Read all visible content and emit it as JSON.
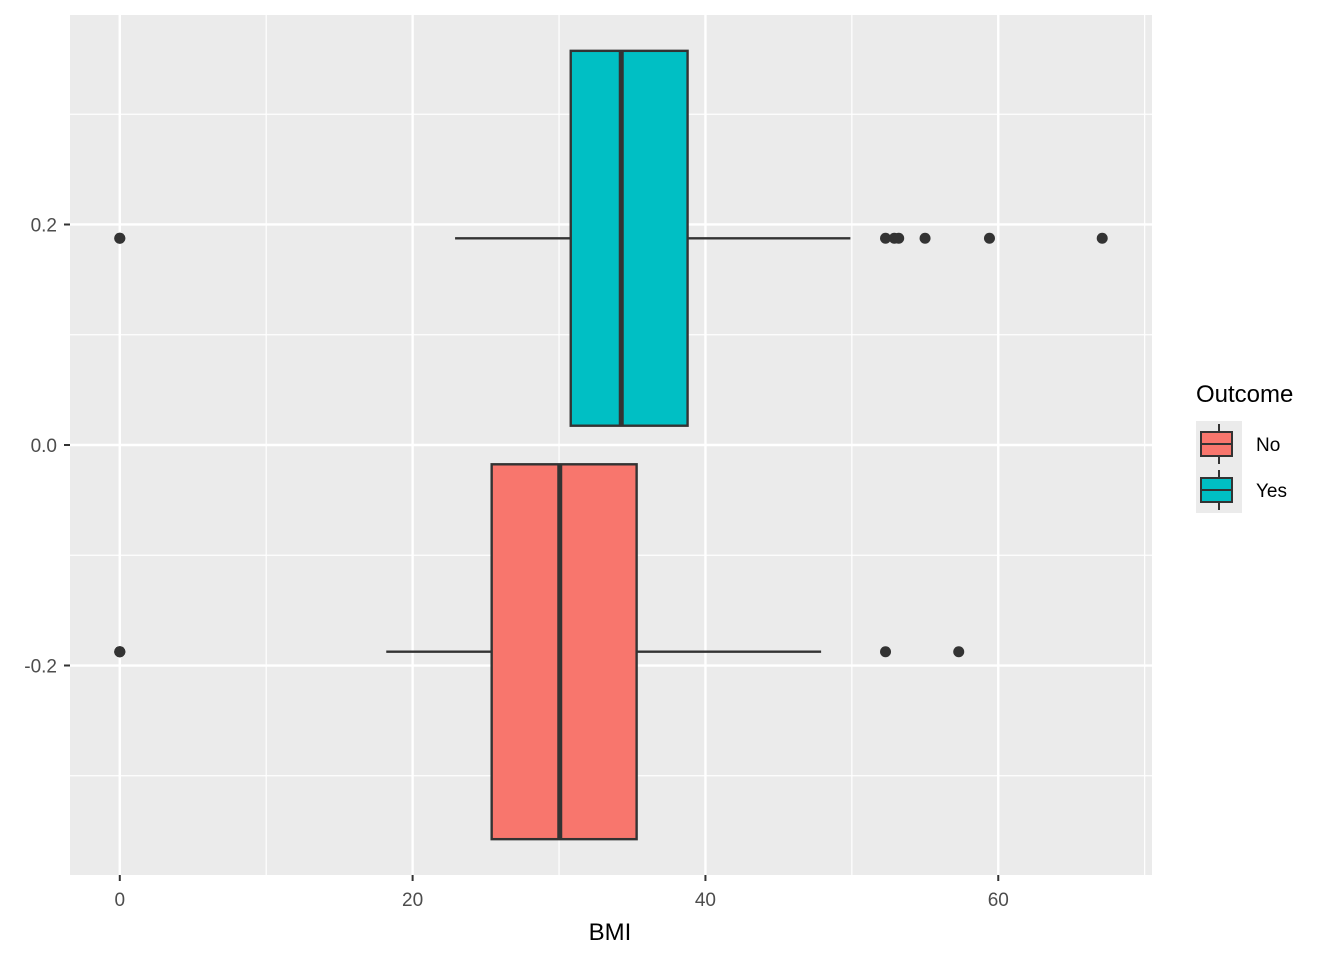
{
  "chart_data": {
    "type": "boxplot",
    "orientation": "horizontal",
    "xlabel": "BMI",
    "ylabel": "",
    "xlim": [
      -3.4,
      70.5
    ],
    "ylim": [
      -0.39,
      0.39
    ],
    "x_ticks": [
      0,
      20,
      40,
      60
    ],
    "x_tick_labels": [
      "0",
      "20",
      "40",
      "60"
    ],
    "y_ticks": [
      -0.2,
      0.0,
      0.2
    ],
    "y_tick_labels": [
      "-0.2",
      "0.0",
      "0.2"
    ],
    "grid": true,
    "legend": {
      "title": "Outcome",
      "position": "right",
      "entries": [
        {
          "label": "No",
          "color": "#F8766D"
        },
        {
          "label": "Yes",
          "color": "#00BFC4"
        }
      ]
    },
    "series": [
      {
        "name": "No",
        "color": "#F8766D",
        "position": -0.1875,
        "box_extent": [
          -0.3575,
          -0.0175
        ],
        "whisker_low": 18.2,
        "q1": 25.4,
        "median": 30.05,
        "q3": 35.3,
        "whisker_high": 47.9,
        "outliers": [
          0,
          0,
          0,
          52.3,
          57.3
        ]
      },
      {
        "name": "Yes",
        "color": "#00BFC4",
        "position": 0.1875,
        "box_extent": [
          0.0175,
          0.3575
        ],
        "whisker_low": 22.9,
        "q1": 30.8,
        "median": 34.25,
        "q3": 38.78,
        "whisker_high": 49.9,
        "outliers": [
          0,
          0,
          52.3,
          52.9,
          53.2,
          55.0,
          59.4,
          67.1
        ]
      }
    ]
  }
}
